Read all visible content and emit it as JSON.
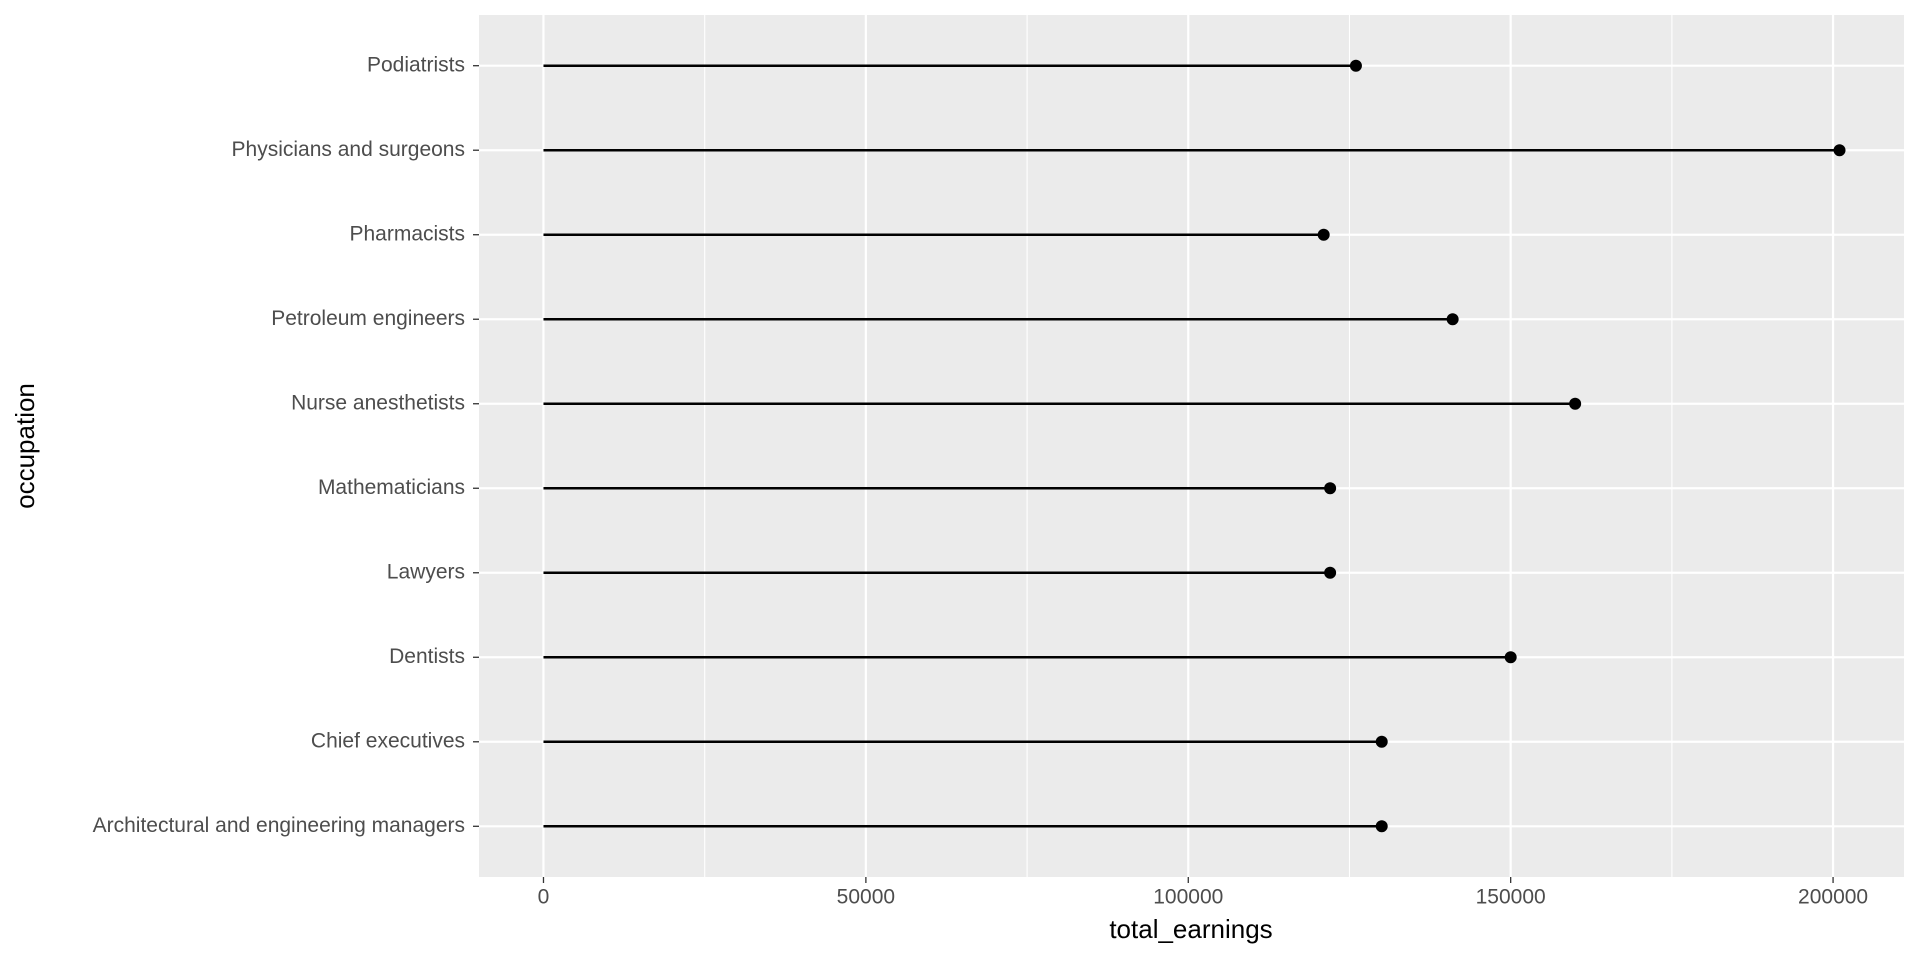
{
  "chart_data": {
    "type": "lollipop",
    "orientation": "horizontal",
    "xlabel": "total_earnings",
    "ylabel": "occupation",
    "categories": [
      "Architectural and engineering managers",
      "Chief executives",
      "Dentists",
      "Lawyers",
      "Mathematicians",
      "Nurse anesthetists",
      "Petroleum engineers",
      "Pharmacists",
      "Physicians and surgeons",
      "Podiatrists"
    ],
    "values": [
      130000,
      130000,
      150000,
      122000,
      122000,
      160000,
      141000,
      121000,
      201000,
      126000
    ],
    "color": "#000000",
    "xlim": [
      -10000,
      211000
    ],
    "xticks": [
      0,
      50000,
      100000,
      150000,
      200000
    ],
    "grid": true
  }
}
